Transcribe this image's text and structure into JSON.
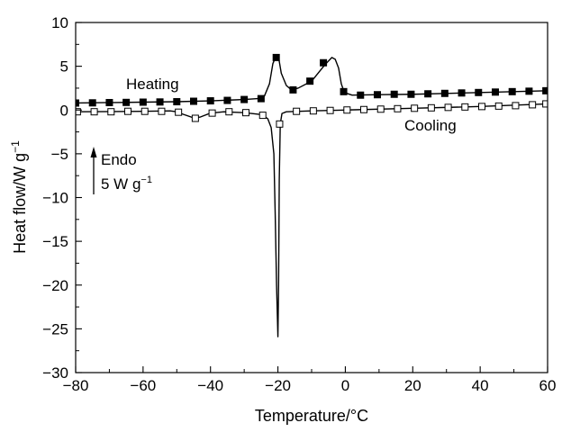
{
  "chart_data": {
    "type": "line",
    "xlabel": "Temperature/°C",
    "ylabel": "Heat flow/W g",
    "ylabel_sup": "−1",
    "xlim": [
      -80,
      60
    ],
    "ylim": [
      -30,
      10
    ],
    "x_ticks": [
      -80,
      -60,
      -40,
      -20,
      0,
      20,
      40,
      60
    ],
    "y_ticks": [
      10,
      5,
      0,
      -5,
      -10,
      -15,
      -20,
      -25,
      -30
    ],
    "x_tick_labels": [
      "−80",
      "−60",
      "−40",
      "−20",
      "0",
      "20",
      "40",
      "60"
    ],
    "y_tick_labels": [
      "10",
      "5",
      "0",
      "−5",
      "−10",
      "−15",
      "−20",
      "−25",
      "−30"
    ],
    "grid": false,
    "annotations": {
      "heating": "Heating",
      "cooling": "Cooling",
      "endo": "Endo",
      "scale": "5 W g",
      "scale_sup": "−1"
    },
    "series": [
      {
        "name": "Heating",
        "marker": "filled-square",
        "line": [
          [
            -80,
            0.8
          ],
          [
            -70,
            0.85
          ],
          [
            -60,
            0.9
          ],
          [
            -50,
            0.95
          ],
          [
            -40,
            1.05
          ],
          [
            -30,
            1.2
          ],
          [
            -26,
            1.3
          ],
          [
            -24,
            1.6
          ],
          [
            -22.5,
            3.0
          ],
          [
            -21.5,
            5.3
          ],
          [
            -20.5,
            6.2
          ],
          [
            -19.7,
            5.8
          ],
          [
            -19.0,
            4.2
          ],
          [
            -17.5,
            2.8
          ],
          [
            -16,
            2.3
          ],
          [
            -14,
            2.5
          ],
          [
            -10,
            3.3
          ],
          [
            -6,
            5.2
          ],
          [
            -4,
            6.0
          ],
          [
            -3,
            5.8
          ],
          [
            -2,
            4.8
          ],
          [
            -1.2,
            3.0
          ],
          [
            -0.3,
            2.0
          ],
          [
            2,
            1.7
          ],
          [
            10,
            1.75
          ],
          [
            20,
            1.8
          ],
          [
            30,
            1.9
          ],
          [
            40,
            2.0
          ],
          [
            50,
            2.1
          ],
          [
            60,
            2.2
          ]
        ],
        "markers": [
          [
            -80,
            0.8
          ],
          [
            -75,
            0.82
          ],
          [
            -70,
            0.85
          ],
          [
            -65,
            0.87
          ],
          [
            -60,
            0.9
          ],
          [
            -55,
            0.92
          ],
          [
            -50,
            0.95
          ],
          [
            -45,
            1.0
          ],
          [
            -40,
            1.05
          ],
          [
            -35,
            1.1
          ],
          [
            -30,
            1.2
          ],
          [
            -25,
            1.3
          ],
          [
            -20.5,
            6.0
          ],
          [
            -15.5,
            2.3
          ],
          [
            -10.5,
            3.3
          ],
          [
            -6.5,
            5.4
          ],
          [
            -0.5,
            2.1
          ],
          [
            4.5,
            1.7
          ],
          [
            9.5,
            1.75
          ],
          [
            14.5,
            1.8
          ],
          [
            19.5,
            1.8
          ],
          [
            24.5,
            1.85
          ],
          [
            29.5,
            1.9
          ],
          [
            34.5,
            1.95
          ],
          [
            39.5,
            2.0
          ],
          [
            44.5,
            2.05
          ],
          [
            49.5,
            2.1
          ],
          [
            54.5,
            2.15
          ],
          [
            59.5,
            2.2
          ]
        ]
      },
      {
        "name": "Cooling",
        "marker": "open-square",
        "line": [
          [
            -80,
            -0.2
          ],
          [
            -60,
            -0.15
          ],
          [
            -52,
            -0.1
          ],
          [
            -50,
            -0.2
          ],
          [
            -48,
            -0.5
          ],
          [
            -45,
            -0.9
          ],
          [
            -43,
            -0.8
          ],
          [
            -40,
            -0.35
          ],
          [
            -36,
            -0.2
          ],
          [
            -30,
            -0.3
          ],
          [
            -25.5,
            -0.5
          ],
          [
            -24.5,
            -0.6
          ],
          [
            -23,
            -1.0
          ],
          [
            -22,
            -2.0
          ],
          [
            -21.2,
            -5.0
          ],
          [
            -20.8,
            -12.0
          ],
          [
            -20.4,
            -20.0
          ],
          [
            -20.0,
            -25.9
          ],
          [
            -19.8,
            -20.0
          ],
          [
            -19.6,
            -8.0
          ],
          [
            -19.3,
            -1.6
          ],
          [
            -18.8,
            -0.4
          ],
          [
            -17.5,
            -0.2
          ],
          [
            -10,
            -0.1
          ],
          [
            0,
            0.0
          ],
          [
            20,
            0.2
          ],
          [
            40,
            0.4
          ],
          [
            60,
            0.7
          ]
        ],
        "markers": [
          [
            -79.5,
            -0.2
          ],
          [
            -74.5,
            -0.2
          ],
          [
            -69.5,
            -0.2
          ],
          [
            -64.5,
            -0.15
          ],
          [
            -59.5,
            -0.15
          ],
          [
            -54.5,
            -0.15
          ],
          [
            -49.5,
            -0.25
          ],
          [
            -44.5,
            -0.95
          ],
          [
            -39.5,
            -0.35
          ],
          [
            -34.5,
            -0.2
          ],
          [
            -29.5,
            -0.3
          ],
          [
            -24.5,
            -0.6
          ],
          [
            -19.5,
            -1.6
          ],
          [
            -14.5,
            -0.15
          ],
          [
            -9.5,
            -0.1
          ],
          [
            -4.5,
            -0.05
          ],
          [
            0.5,
            0.0
          ],
          [
            5.5,
            0.05
          ],
          [
            10.5,
            0.1
          ],
          [
            15.5,
            0.15
          ],
          [
            20.5,
            0.2
          ],
          [
            25.5,
            0.25
          ],
          [
            30.5,
            0.3
          ],
          [
            35.5,
            0.35
          ],
          [
            40.5,
            0.4
          ],
          [
            45.5,
            0.45
          ],
          [
            50.5,
            0.5
          ],
          [
            55.5,
            0.6
          ],
          [
            59.5,
            0.7
          ]
        ]
      }
    ]
  }
}
